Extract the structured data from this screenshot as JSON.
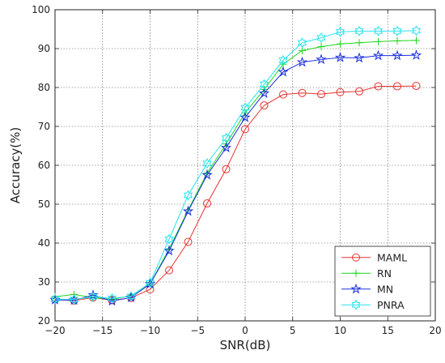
{
  "chart_data": {
    "type": "line",
    "title": "",
    "xlabel": "SNR(dB)",
    "ylabel": "Accuracy(%)",
    "xlim": [
      -20,
      20
    ],
    "ylim": [
      20,
      100
    ],
    "xticks": [
      -20,
      -15,
      -10,
      -5,
      0,
      5,
      10,
      15,
      20
    ],
    "yticks": [
      20,
      30,
      40,
      50,
      60,
      70,
      80,
      90,
      100
    ],
    "grid": true,
    "legend_position": "bottom-right",
    "x": [
      -20,
      -18,
      -16,
      -14,
      -12,
      -10,
      -8,
      -6,
      -4,
      -2,
      0,
      2,
      4,
      6,
      8,
      10,
      12,
      14,
      16,
      18
    ],
    "series": [
      {
        "name": "MAML",
        "color": "#e8312f",
        "marker": "circle",
        "values": [
          25.5,
          25.2,
          26.0,
          25.3,
          25.9,
          28.1,
          33.0,
          40.3,
          50.2,
          59.0,
          69.3,
          75.4,
          78.2,
          78.6,
          78.3,
          78.8,
          79.0,
          80.3,
          80.3,
          80.4
        ]
      },
      {
        "name": "RN",
        "color": "#1fd61f",
        "marker": "plus",
        "values": [
          26.2,
          26.8,
          26.0,
          25.5,
          26.5,
          29.5,
          38.5,
          48.5,
          58.0,
          65.5,
          73.5,
          79.5,
          86.0,
          89.5,
          90.5,
          91.2,
          91.5,
          91.8,
          92.0,
          92.1
        ]
      },
      {
        "name": "MN",
        "color": "#1a2ee0",
        "marker": "star",
        "values": [
          25.4,
          25.3,
          26.6,
          25.1,
          26.0,
          29.5,
          38.0,
          48.2,
          57.5,
          64.5,
          72.3,
          78.5,
          84.0,
          86.5,
          87.2,
          87.7,
          87.6,
          88.2,
          88.2,
          88.3
        ]
      },
      {
        "name": "PNRA",
        "color": "#22e3ef",
        "marker": "hexagram",
        "values": [
          25.6,
          25.5,
          26.2,
          25.8,
          26.3,
          29.8,
          41.0,
          52.3,
          60.5,
          67.0,
          74.8,
          80.8,
          87.0,
          91.5,
          92.8,
          94.3,
          94.5,
          94.5,
          94.5,
          94.6
        ]
      }
    ]
  }
}
